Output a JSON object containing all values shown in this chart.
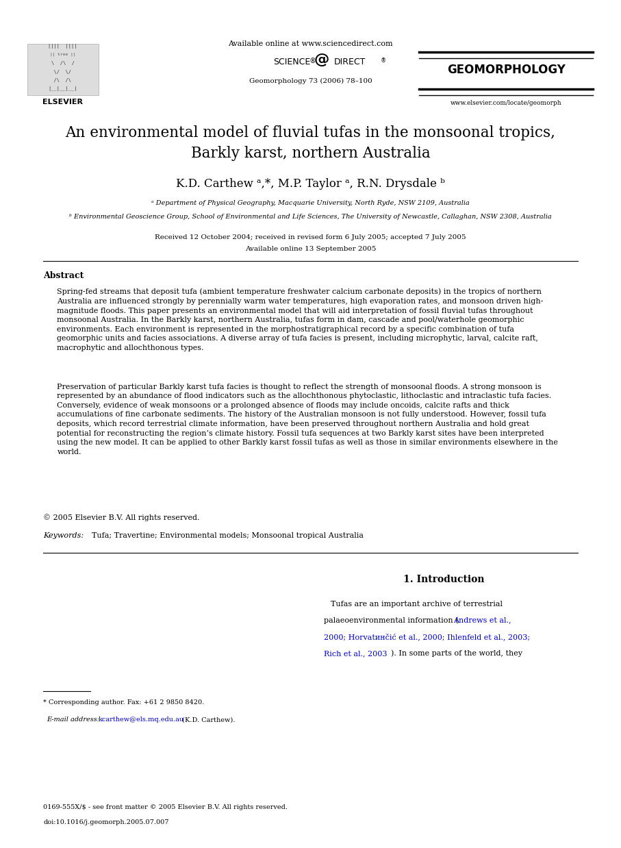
{
  "bg_color": "#ffffff",
  "page_width": 9.07,
  "page_height": 12.38,
  "header_available_online": "Available online at www.sciencedirect.com",
  "header_journal_info": "Geomorphology 73 (2006) 78–100",
  "header_journal_name": "GEOMORPHOLOGY",
  "header_website": "www.elsevier.com/locate/geomorph",
  "title_line1": "An environmental model of fluvial tufas in the monsoonal tropics,",
  "title_line2": "Barkly karst, northern Australia",
  "authors": "K.D. Carthew ᵃ,*, M.P. Taylor ᵃ, R.N. Drysdale ᵇ",
  "affil_a": "ᵃ Department of Physical Geography, Macquarie University, North Ryde, NSW 2109, Australia",
  "affil_b": "ᵇ Environmental Geoscience Group, School of Environmental and Life Sciences, The University of Newcastle, Callaghan, NSW 2308, Australia",
  "received_text": "Received 12 October 2004; received in revised form 6 July 2005; accepted 7 July 2005",
  "available_online": "Available online 13 September 2005",
  "abstract_title": "Abstract",
  "abstract_para1": "Spring-fed streams that deposit tufa (ambient temperature freshwater calcium carbonate deposits) in the tropics of northern\nAustralia are influenced strongly by perennially warm water temperatures, high evaporation rates, and monsoon driven high-\nmagnitude floods. This paper presents an environmental model that will aid interpretation of fossil fluvial tufas throughout\nmonsoonal Australia. In the Barkly karst, northern Australia, tufas form in dam, cascade and pool/waterhole geomorphic\nenvironments. Each environment is represented in the morphostratigraphical record by a specific combination of tufa\ngeomorphic units and facies associations. A diverse array of tufa facies is present, including microphytic, larval, calcite raft,\nmacrophytic and allochthonous types.",
  "abstract_para2": "Preservation of particular Barkly karst tufa facies is thought to reflect the strength of monsoonal floods. A strong monsoon is\nrepresented by an abundance of flood indicators such as the allochthonous phytoclastic, lithoclastic and intraclastic tufa facies.\nConversely, evidence of weak monsoons or a prolonged absence of floods may include oncoids, calcite rafts and thick\naccumulations of fine carbonate sediments. The history of the Australian monsoon is not fully understood. However, fossil tufa\ndeposits, which record terrestrial climate information, have been preserved throughout northern Australia and hold great\npotential for reconstructing the region’s climate history. Fossil tufa sequences at two Barkly karst sites have been interpreted\nusing the new model. It can be applied to other Barkly karst fossil tufas as well as those in similar environments elsewhere in the\nworld.",
  "copyright": "© 2005 Elsevier B.V. All rights reserved.",
  "keywords_label": "Keywords:",
  "keywords": "Tufa; Travertine; Environmental models; Monsoonal tropical Australia",
  "section1_title": "1. Introduction",
  "intro_line1": "Tufas are an important archive of terrestrial",
  "intro_line2_pre": "palaeoenvironmental information (",
  "intro_line2_blue": "Andrews et al.,",
  "intro_line3_blue": "2000; Horvatинčić et al., 2000; Ihlenfeld et al., 2003;",
  "intro_line4_blue": "Rich et al., 2003",
  "intro_line4_post": "). In some parts of the world, they",
  "footnote_line": "* Corresponding author. Fax: +61 2 9850 8420.",
  "footnote_email_label": "E-mail address:",
  "footnote_email": "kcarthew@els.mq.edu.au",
  "footnote_email_end": " (K.D. Carthew).",
  "footer_issn": "0169-555X/$ - see front matter © 2005 Elsevier B.V. All rights reserved.",
  "footer_doi": "doi:10.1016/j.geomorph.2005.07.007",
  "link_color": "#0000cc",
  "text_color": "#000000",
  "font_family": "serif"
}
